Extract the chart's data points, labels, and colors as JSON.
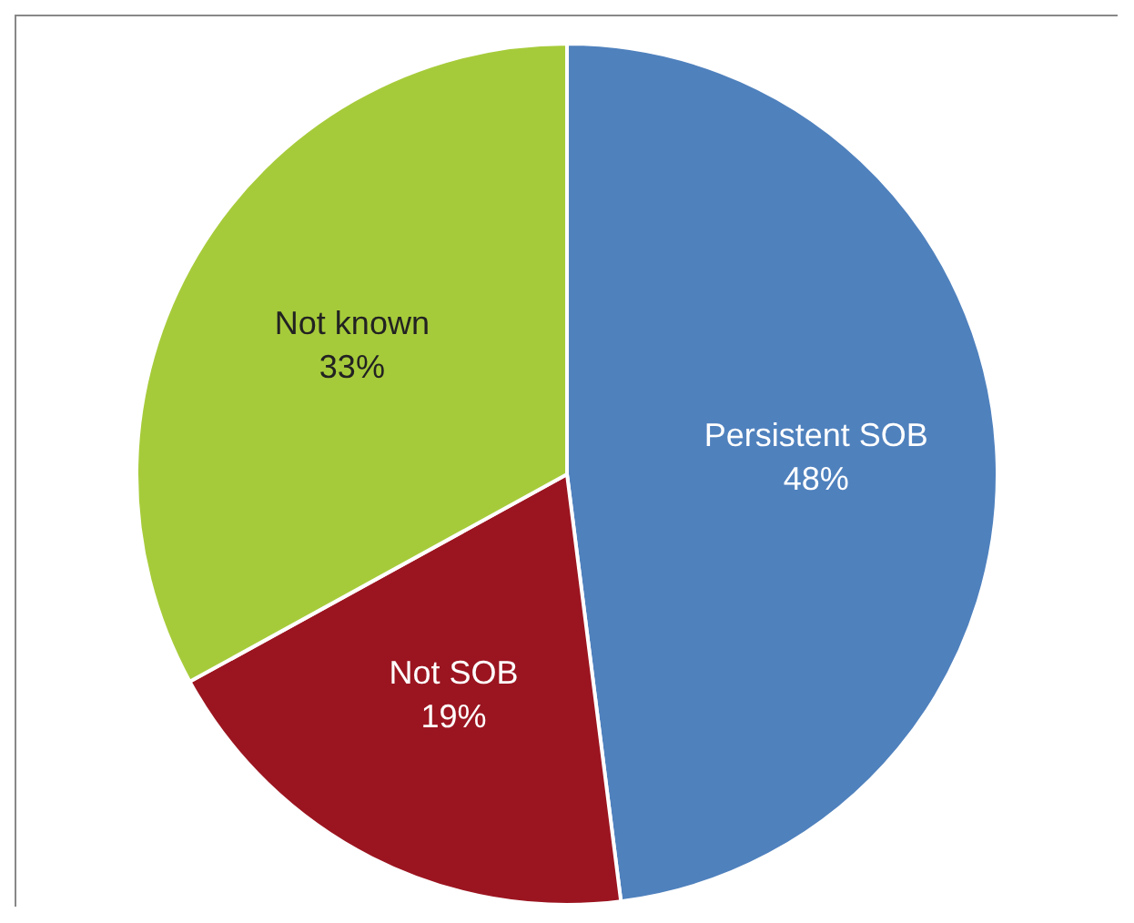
{
  "chart_data": {
    "type": "pie",
    "categories": [
      "Persistent SOB",
      "Not SOB",
      "Not known"
    ],
    "values": [
      48,
      19,
      33
    ],
    "colors": [
      "#4f81bd",
      "#9b1520",
      "#a6cb3a"
    ],
    "value_labels": [
      "48%",
      "19%",
      "33%"
    ],
    "legend": false
  }
}
